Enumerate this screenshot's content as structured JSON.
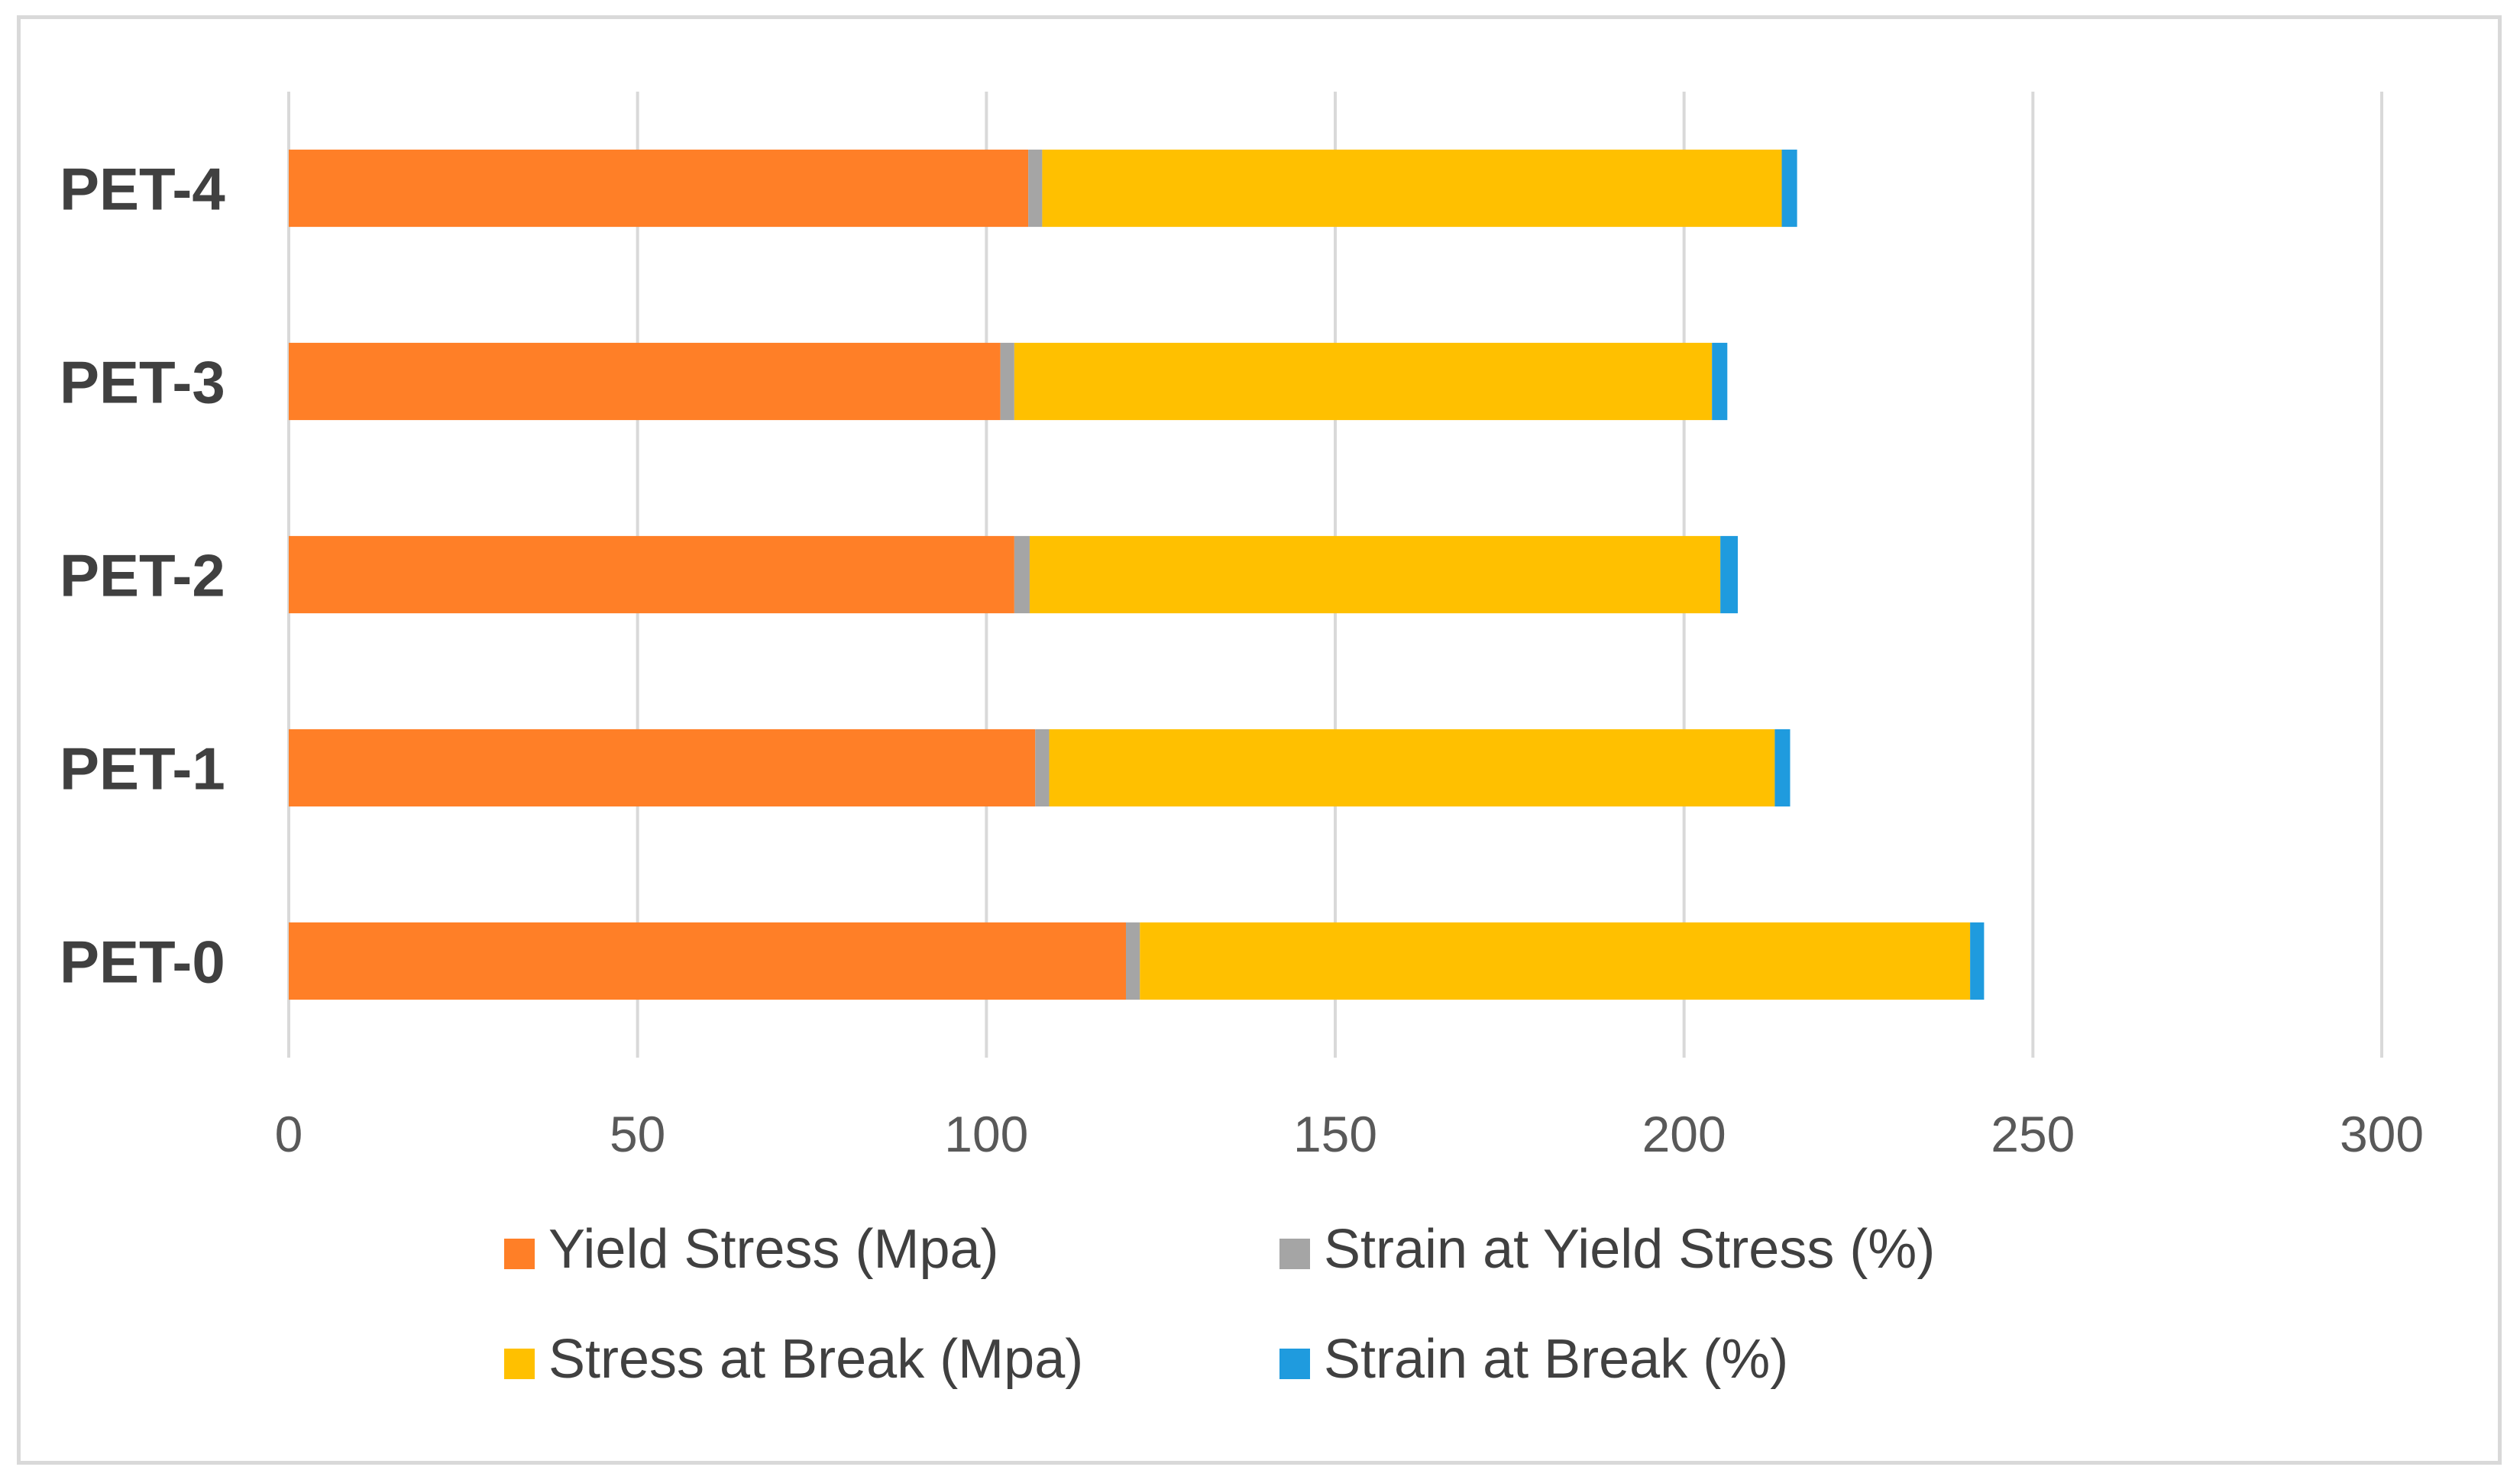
{
  "chart_data": {
    "type": "bar",
    "orientation": "horizontal",
    "stacked": true,
    "categories": [
      "PET-0",
      "PET-1",
      "PET-2",
      "PET-3",
      "PET-4"
    ],
    "series": [
      {
        "name": "Yield Stress (Mpa)",
        "color": "#FF7F27",
        "values": [
          120,
          107,
          104,
          102,
          106
        ]
      },
      {
        "name": "Strain at Yield Stress (%)",
        "color": "#A5A5A5",
        "values": [
          2,
          2,
          2.2,
          2,
          2
        ]
      },
      {
        "name": "Stress at Break (Mpa)",
        "color": "#FFC000",
        "values": [
          119,
          104,
          99,
          100,
          106
        ]
      },
      {
        "name": "Strain at Break (%)",
        "color": "#1F9BDE",
        "values": [
          2,
          2.2,
          2.5,
          2.2,
          2.2
        ]
      }
    ],
    "xlim": [
      0,
      300
    ],
    "xticks": [
      0,
      50,
      100,
      150,
      200,
      250,
      300
    ],
    "grid": true,
    "legend_position": "bottom",
    "title": "",
    "xlabel": "",
    "ylabel": ""
  }
}
